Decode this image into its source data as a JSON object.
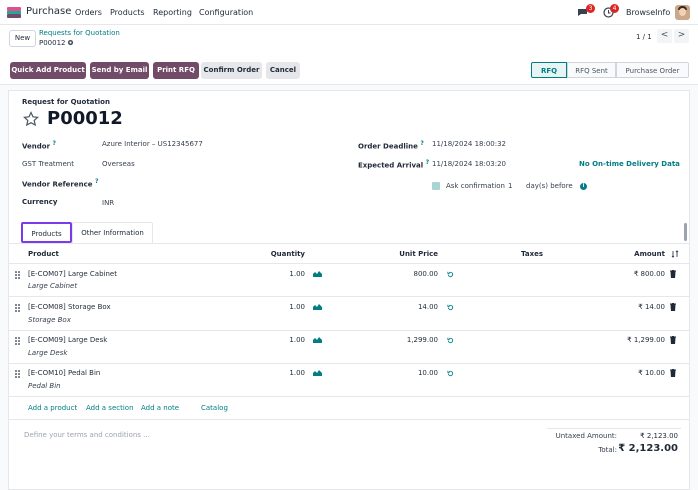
{
  "app": {
    "name": "Purchase"
  },
  "menu": {
    "orders": "Orders",
    "products": "Products",
    "reporting": "Reporting",
    "configuration": "Configuration"
  },
  "systray": {
    "messages_count": "3",
    "activities_count": "4",
    "company": "BrowseInfo"
  },
  "control": {
    "new_label": "New",
    "breadcrumb": "Requests for Quotation",
    "record": "P00012",
    "pager": "1 / 1",
    "prev": "<",
    "next": ">"
  },
  "buttons": {
    "quick_add": "Quick Add Product",
    "send_email": "Send by Email",
    "print_rfq": "Print RFQ",
    "confirm": "Confirm Order",
    "cancel": "Cancel"
  },
  "statusbar": {
    "rfq": "RFQ",
    "rfq_sent": "RFQ Sent",
    "purchase_order": "Purchase Order"
  },
  "form": {
    "title_label": "Request for Quotation",
    "number": "P00012",
    "vendor_label": "Vendor",
    "vendor": "Azure Interior – US12345677",
    "gst_label": "GST Treatment",
    "gst": "Overseas",
    "vendor_ref_label": "Vendor Reference",
    "currency_label": "Currency",
    "currency": "INR",
    "deadline_label": "Order Deadline",
    "deadline": "11/18/2024 18:00:32",
    "arrival_label": "Expected Arrival",
    "arrival": "11/18/2024 18:03:20",
    "ontime": "No On-time Delivery Data",
    "confirm_label": "Ask confirmation",
    "confirm_days": "1",
    "days_before": "day(s) before",
    "help_mark": "?"
  },
  "tabs": {
    "products": "Products",
    "other": "Other Information"
  },
  "table": {
    "headers": {
      "product": "Product",
      "quantity": "Quantity",
      "unit_price": "Unit Price",
      "taxes": "Taxes",
      "amount": "Amount"
    },
    "rows": [
      {
        "code": "[E-COM07] Large Cabinet",
        "desc": "Large Cabinet",
        "qty": "1.00",
        "price": "800.00",
        "amount": "₹ 800.00"
      },
      {
        "code": "[E-COM08] Storage Box",
        "desc": "Storage Box",
        "qty": "1.00",
        "price": "14.00",
        "amount": "₹ 14.00"
      },
      {
        "code": "[E-COM09] Large Desk",
        "desc": "Large Desk",
        "qty": "1.00",
        "price": "1,299.00",
        "amount": "₹ 1,299.00"
      },
      {
        "code": "[E-COM10] Pedal Bin",
        "desc": "Pedal Bin",
        "qty": "1.00",
        "price": "10.00",
        "amount": "₹ 10.00"
      }
    ],
    "add_product": "Add a product",
    "add_section": "Add a section",
    "add_note": "Add a note",
    "catalog": "Catalog"
  },
  "footer": {
    "terms_placeholder": "Define your terms and conditions ...",
    "untaxed_label": "Untaxed Amount:",
    "untaxed": "₹ 2,123.00",
    "total_label": "Total:",
    "total": "₹ 2,123.00"
  },
  "colors": {
    "brand": "#714b67",
    "link": "#017e84",
    "badge": "#dc2626"
  }
}
